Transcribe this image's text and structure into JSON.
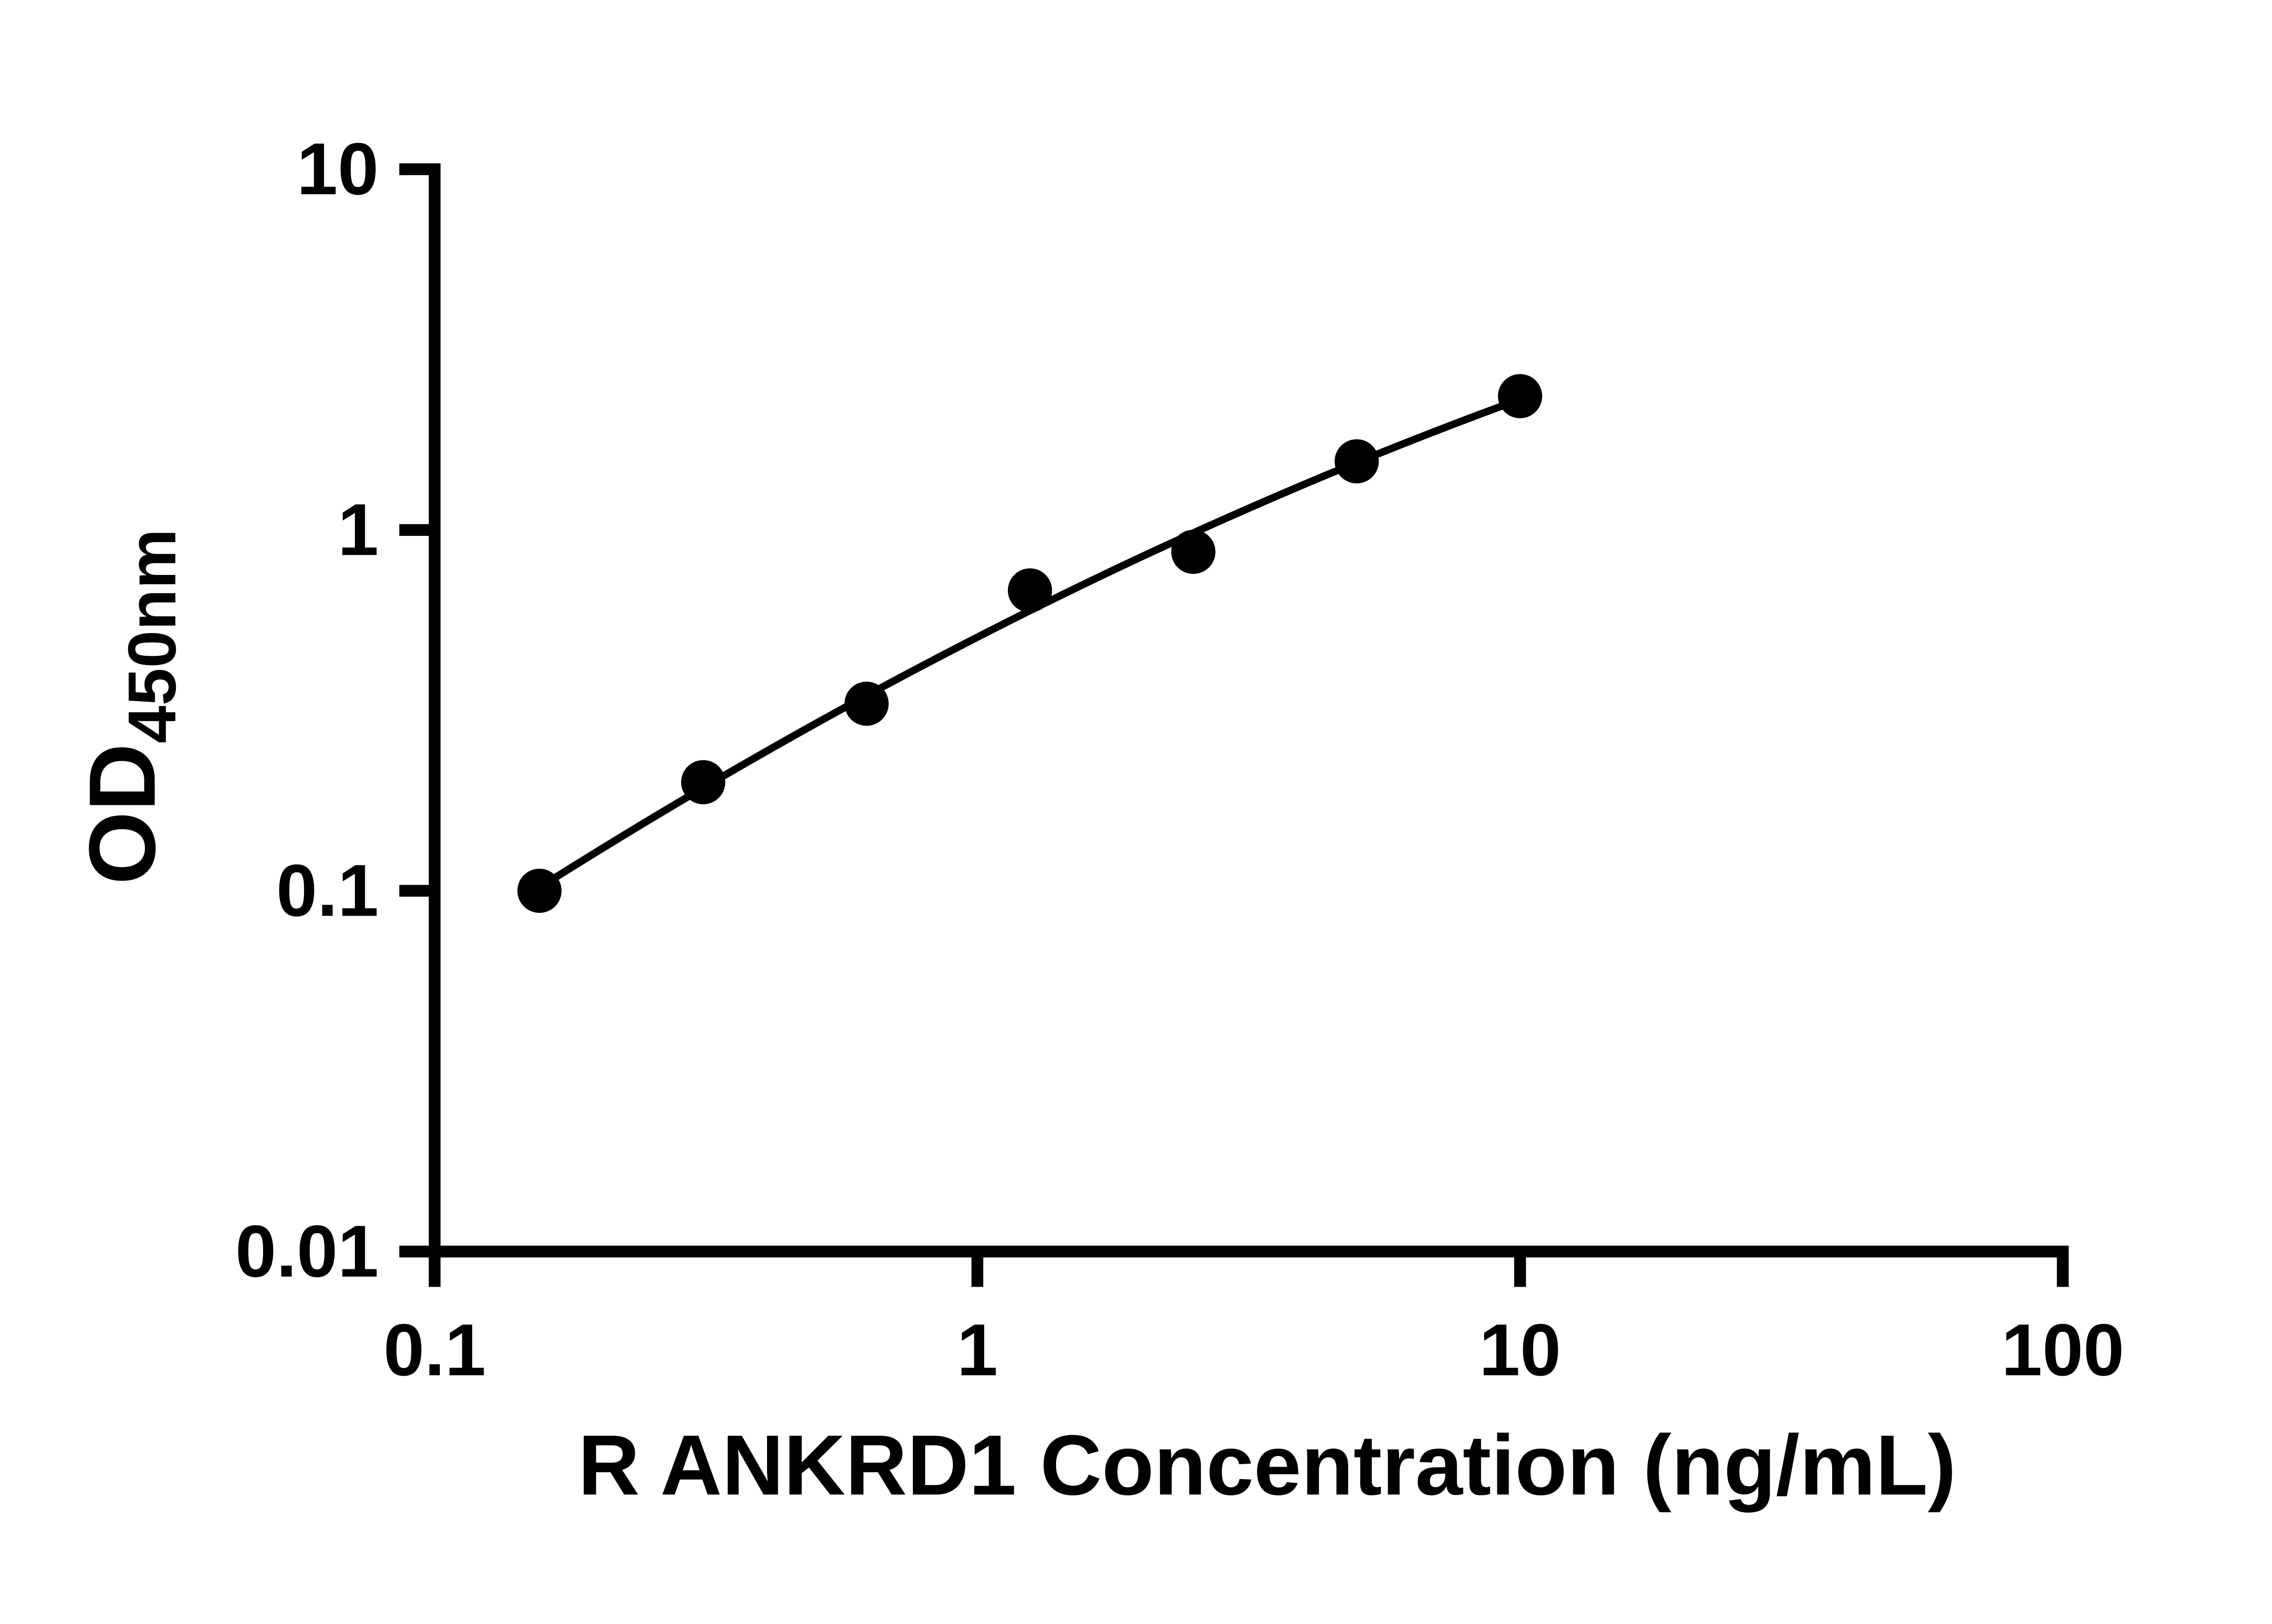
{
  "chart_data": {
    "type": "scatter",
    "title": "",
    "xlabel": "R ANKRD1 Concentration (ng/mL)",
    "ylabel_main": "OD",
    "ylabel_sub": "450nm",
    "x_scale": "log",
    "y_scale": "log",
    "xlim": [
      0.1,
      100
    ],
    "ylim": [
      0.01,
      10
    ],
    "x_ticks": [
      0.1,
      1,
      10,
      100
    ],
    "x_tick_labels": [
      "0.1",
      "1",
      "10",
      "100"
    ],
    "y_ticks": [
      0.01,
      0.1,
      1,
      10
    ],
    "y_tick_labels": [
      "0.01",
      "0.1",
      "1",
      "10"
    ],
    "x": [
      0.156,
      0.3125,
      0.625,
      1.25,
      2.5,
      5,
      10
    ],
    "y": [
      0.1,
      0.2,
      0.33,
      0.68,
      0.87,
      1.55,
      2.35
    ],
    "fit": "quadratic-loglog",
    "marker_color": "#000000",
    "line_color": "#000000",
    "background_color": "#ffffff",
    "grid": false,
    "legend": false
  }
}
